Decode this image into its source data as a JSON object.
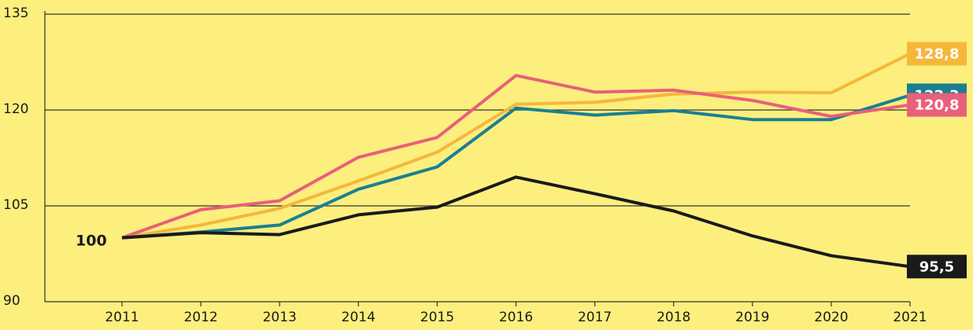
{
  "chart_data": {
    "type": "line",
    "annotation": "100",
    "categories": [
      "2011",
      "2012",
      "2013",
      "2014",
      "2015",
      "2016",
      "2017",
      "2018",
      "2019",
      "2020",
      "2021"
    ],
    "series": [
      {
        "color": "#f5b73a",
        "values": [
          100,
          102.0,
          104.6,
          108.9,
          113.4,
          120.9,
          121.2,
          122.5,
          122.8,
          122.7,
          128.8
        ],
        "end_label": "128,8"
      },
      {
        "color": "#1a7f93",
        "values": [
          100,
          100.9,
          102.0,
          107.6,
          111.1,
          120.3,
          119.2,
          119.9,
          118.5,
          118.5,
          122.3
        ],
        "end_label": "122,3"
      },
      {
        "color": "#e8607a",
        "values": [
          100,
          104.4,
          105.8,
          112.6,
          115.7,
          125.4,
          122.8,
          123.1,
          121.5,
          119.0,
          120.8
        ],
        "end_label": "120,8"
      },
      {
        "color": "#1a1a1a",
        "values": [
          100,
          100.8,
          100.5,
          103.6,
          104.8,
          109.5,
          106.9,
          104.2,
          100.3,
          97.2,
          95.5
        ],
        "end_label": "95,5"
      }
    ],
    "ylim": [
      90,
      135
    ],
    "yticks": [
      90,
      105,
      120,
      135
    ],
    "grid": true
  }
}
